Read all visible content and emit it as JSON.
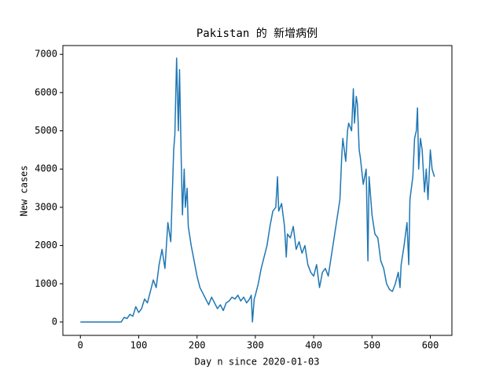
{
  "chart_data": {
    "type": "line",
    "title": "Pakistan 的 新增病例",
    "xlabel": "Day n since 2020-01-03",
    "ylabel": "New cases",
    "x": [
      0,
      5,
      10,
      15,
      20,
      25,
      30,
      35,
      40,
      45,
      50,
      55,
      60,
      65,
      70,
      75,
      80,
      85,
      90,
      95,
      100,
      105,
      110,
      115,
      120,
      125,
      130,
      135,
      140,
      145,
      150,
      155,
      160,
      162,
      165,
      168,
      170,
      173,
      175,
      178,
      180,
      183,
      185,
      190,
      195,
      200,
      205,
      210,
      215,
      220,
      225,
      230,
      235,
      240,
      245,
      250,
      255,
      260,
      265,
      270,
      275,
      280,
      285,
      290,
      293,
      295,
      298,
      300,
      305,
      310,
      315,
      320,
      325,
      330,
      335,
      338,
      340,
      345,
      350,
      353,
      355,
      360,
      365,
      370,
      375,
      380,
      385,
      390,
      395,
      400,
      405,
      410,
      415,
      420,
      425,
      430,
      435,
      440,
      445,
      448,
      450,
      455,
      458,
      460,
      465,
      468,
      470,
      473,
      475,
      478,
      480,
      485,
      490,
      493,
      495,
      500,
      505,
      510,
      515,
      520,
      525,
      530,
      535,
      540,
      545,
      548,
      550,
      555,
      560,
      563,
      565,
      570,
      573,
      576,
      578,
      580,
      583,
      586,
      590,
      593,
      596,
      600,
      603,
      607
    ],
    "series": [
      {
        "name": "New cases",
        "color": "#1f77b4",
        "values": [
          0,
          0,
          0,
          0,
          0,
          0,
          0,
          0,
          0,
          0,
          0,
          0,
          0,
          0,
          0,
          120,
          90,
          200,
          150,
          400,
          250,
          350,
          600,
          500,
          800,
          1100,
          900,
          1500,
          1900,
          1400,
          2600,
          2100,
          4500,
          4900,
          6900,
          5000,
          6600,
          4200,
          2800,
          4000,
          3000,
          3500,
          2500,
          2000,
          1600,
          1200,
          900,
          750,
          600,
          450,
          650,
          500,
          350,
          450,
          300,
          500,
          550,
          650,
          600,
          700,
          550,
          650,
          500,
          600,
          700,
          0,
          600,
          700,
          1000,
          1400,
          1700,
          2000,
          2500,
          2900,
          3000,
          3800,
          2900,
          3100,
          2500,
          1700,
          2300,
          2200,
          2500,
          1900,
          2100,
          1800,
          2000,
          1500,
          1300,
          1200,
          1500,
          900,
          1300,
          1400,
          1200,
          1700,
          2200,
          2700,
          3200,
          4300,
          4800,
          4200,
          5000,
          5200,
          5000,
          6100,
          5200,
          5900,
          5700,
          4500,
          4300,
          3600,
          4000,
          1600,
          3800,
          2800,
          2300,
          2200,
          1600,
          1400,
          1000,
          850,
          800,
          1000,
          1300,
          900,
          1500,
          2000,
          2600,
          1500,
          3200,
          3800,
          4800,
          5000,
          5600,
          4000,
          4800,
          4500,
          3400,
          4000,
          3200,
          4500,
          4000,
          3800
        ]
      }
    ],
    "xlim": [
      -30,
      637
    ],
    "ylim": [
      -350,
      7230
    ],
    "xticks": [
      0,
      100,
      200,
      300,
      400,
      500,
      600
    ],
    "yticks": [
      0,
      1000,
      2000,
      3000,
      4000,
      5000,
      6000,
      7000
    ]
  }
}
